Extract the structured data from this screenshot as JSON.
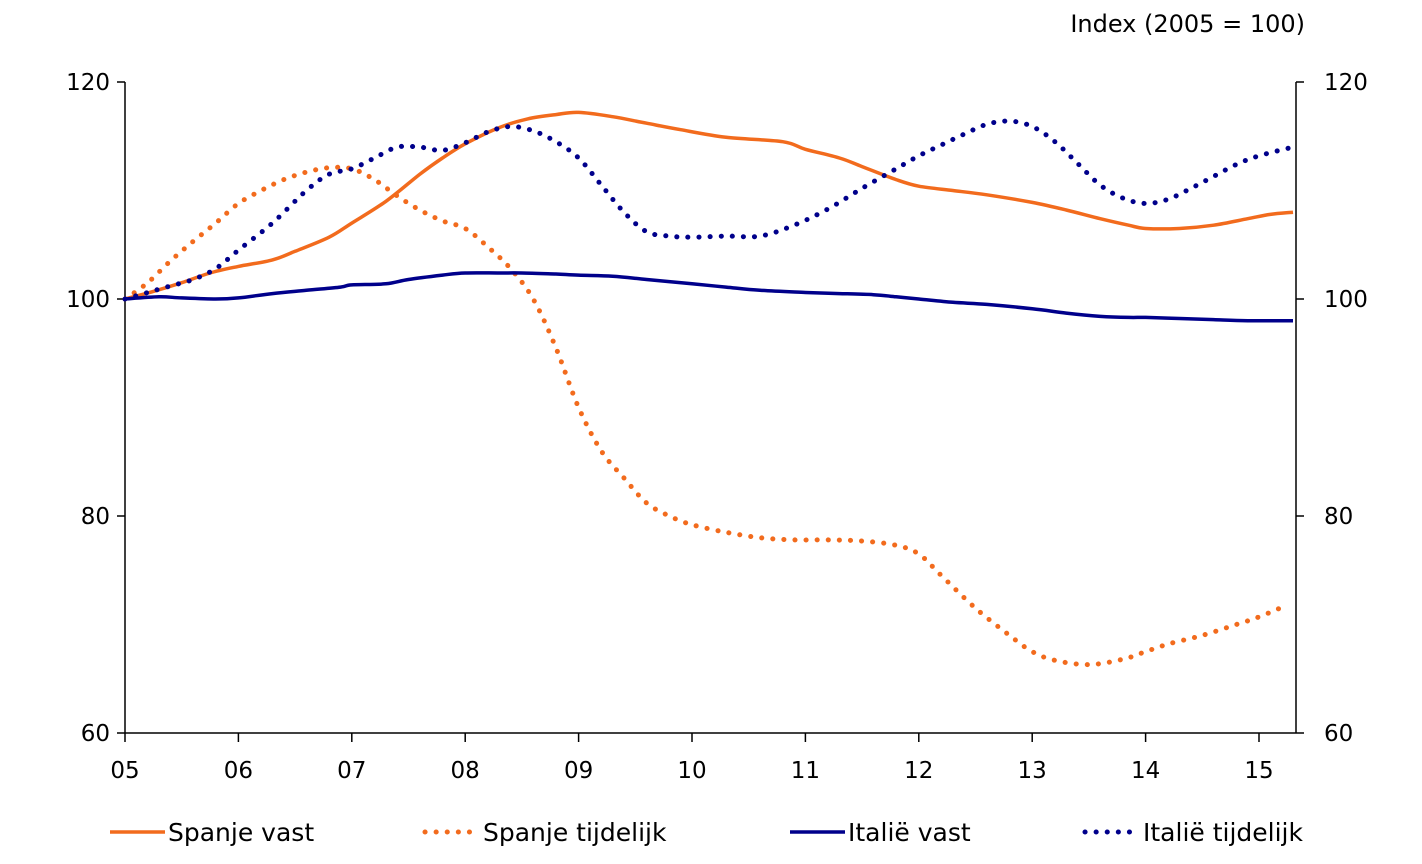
{
  "chart_data": {
    "type": "line",
    "unit_label": "Index (2005 = 100)",
    "x_ticks": [
      "05",
      "06",
      "07",
      "08",
      "09",
      "10",
      "11",
      "12",
      "13",
      "14",
      "15"
    ],
    "x_range": [
      2005.0,
      2015.3
    ],
    "ylim": [
      60,
      120
    ],
    "y_ticks": [
      60,
      80,
      100,
      120
    ],
    "secondary_y_axis": true,
    "grid": false,
    "legend_position": "bottom",
    "series": [
      {
        "name": "Spanje vast",
        "color": "#F26B1D",
        "style": "solid",
        "x": [
          2005.0,
          2005.25,
          2005.5,
          2005.75,
          2006.0,
          2006.3,
          2006.5,
          2006.8,
          2007.0,
          2007.3,
          2007.6,
          2007.8,
          2008.0,
          2008.3,
          2008.55,
          2008.8,
          2009.0,
          2009.3,
          2009.6,
          2009.9,
          2010.3,
          2010.8,
          2011.0,
          2011.3,
          2011.5,
          2011.8,
          2012.0,
          2012.3,
          2012.6,
          2013.0,
          2013.3,
          2013.6,
          2013.85,
          2014.0,
          2014.3,
          2014.6,
          2014.9,
          2015.1,
          2015.3
        ],
        "y": [
          100,
          100.7,
          101.5,
          102.4,
          103.0,
          103.6,
          104.4,
          105.7,
          107.0,
          109.0,
          111.5,
          113.0,
          114.3,
          115.8,
          116.6,
          117.0,
          117.2,
          116.8,
          116.2,
          115.6,
          114.9,
          114.5,
          113.8,
          113.0,
          112.2,
          111.0,
          110.4,
          110.0,
          109.6,
          108.9,
          108.2,
          107.4,
          106.8,
          106.5,
          106.5,
          106.8,
          107.4,
          107.8,
          108.0
        ]
      },
      {
        "name": "Spanje tijdelijk",
        "color": "#F26B1D",
        "style": "dotted",
        "x": [
          2005.0,
          2005.2,
          2005.4,
          2005.6,
          2005.8,
          2006.0,
          2006.2,
          2006.4,
          2006.6,
          2006.8,
          2007.0,
          2007.2,
          2007.4,
          2007.6,
          2007.8,
          2008.0,
          2008.2,
          2008.4,
          2008.6,
          2008.8,
          2009.0,
          2009.2,
          2009.4,
          2009.6,
          2009.8,
          2010.0,
          2010.3,
          2010.6,
          2010.9,
          2011.2,
          2011.5,
          2011.8,
          2012.0,
          2012.2,
          2012.5,
          2012.8,
          2013.0,
          2013.2,
          2013.5,
          2013.8,
          2014.0,
          2014.2,
          2014.5,
          2014.8,
          2015.0,
          2015.25
        ],
        "y": [
          100,
          101.5,
          103.5,
          105.3,
          107.0,
          108.8,
          110.0,
          111.0,
          111.7,
          112.1,
          112.0,
          111.0,
          109.5,
          108.2,
          107.2,
          106.5,
          104.8,
          102.8,
          100.0,
          95.5,
          90.0,
          86.0,
          83.5,
          81.2,
          80.0,
          79.2,
          78.5,
          78.0,
          77.8,
          77.8,
          77.7,
          77.3,
          76.5,
          74.5,
          71.5,
          69.0,
          67.5,
          66.7,
          66.3,
          66.8,
          67.5,
          68.2,
          69.0,
          70.0,
          70.7,
          71.8
        ]
      },
      {
        "name": "Italië vast",
        "color": "#00008B",
        "style": "solid",
        "x": [
          2005.0,
          2005.3,
          2005.5,
          2005.8,
          2006.0,
          2006.3,
          2006.6,
          2006.9,
          2007.0,
          2007.3,
          2007.5,
          2007.8,
          2008.0,
          2008.3,
          2008.5,
          2008.8,
          2009.0,
          2009.3,
          2009.6,
          2010.0,
          2010.3,
          2010.6,
          2011.0,
          2011.3,
          2011.6,
          2011.8,
          2012.0,
          2012.3,
          2012.6,
          2013.0,
          2013.3,
          2013.6,
          2013.85,
          2014.0,
          2014.3,
          2014.6,
          2014.9,
          2015.3
        ],
        "y": [
          100,
          100.2,
          100.1,
          100.0,
          100.1,
          100.5,
          100.8,
          101.1,
          101.3,
          101.4,
          101.8,
          102.2,
          102.4,
          102.4,
          102.4,
          102.3,
          102.2,
          102.1,
          101.8,
          101.4,
          101.1,
          100.8,
          100.6,
          100.5,
          100.4,
          100.2,
          100.0,
          99.7,
          99.5,
          99.1,
          98.7,
          98.4,
          98.3,
          98.3,
          98.2,
          98.1,
          98.0,
          98.0
        ]
      },
      {
        "name": "Italië tijdelijk",
        "color": "#00008B",
        "style": "dotted",
        "x": [
          2005.0,
          2005.2,
          2005.4,
          2005.6,
          2005.8,
          2006.0,
          2006.3,
          2006.6,
          2006.8,
          2007.0,
          2007.2,
          2007.4,
          2007.6,
          2007.8,
          2008.0,
          2008.2,
          2008.4,
          2008.6,
          2008.8,
          2009.0,
          2009.2,
          2009.4,
          2009.6,
          2009.8,
          2010.0,
          2010.3,
          2010.6,
          2010.9,
          2011.2,
          2011.5,
          2011.8,
          2012.0,
          2012.2,
          2012.4,
          2012.6,
          2012.8,
          2013.0,
          2013.2,
          2013.4,
          2013.6,
          2013.8,
          2014.0,
          2014.2,
          2014.4,
          2014.6,
          2014.8,
          2015.0,
          2015.3
        ],
        "y": [
          100,
          100.6,
          101.2,
          101.8,
          102.8,
          104.5,
          107.0,
          110.0,
          111.5,
          112.0,
          113.0,
          114.0,
          114.0,
          113.7,
          114.4,
          115.4,
          115.9,
          115.5,
          114.5,
          113.0,
          110.5,
          108.0,
          106.2,
          105.8,
          105.7,
          105.8,
          105.8,
          106.8,
          108.3,
          110.2,
          112.0,
          113.2,
          114.2,
          115.2,
          116.1,
          116.4,
          115.9,
          114.5,
          112.5,
          110.5,
          109.3,
          108.8,
          109.2,
          110.2,
          111.3,
          112.4,
          113.2,
          114.0
        ]
      }
    ]
  }
}
